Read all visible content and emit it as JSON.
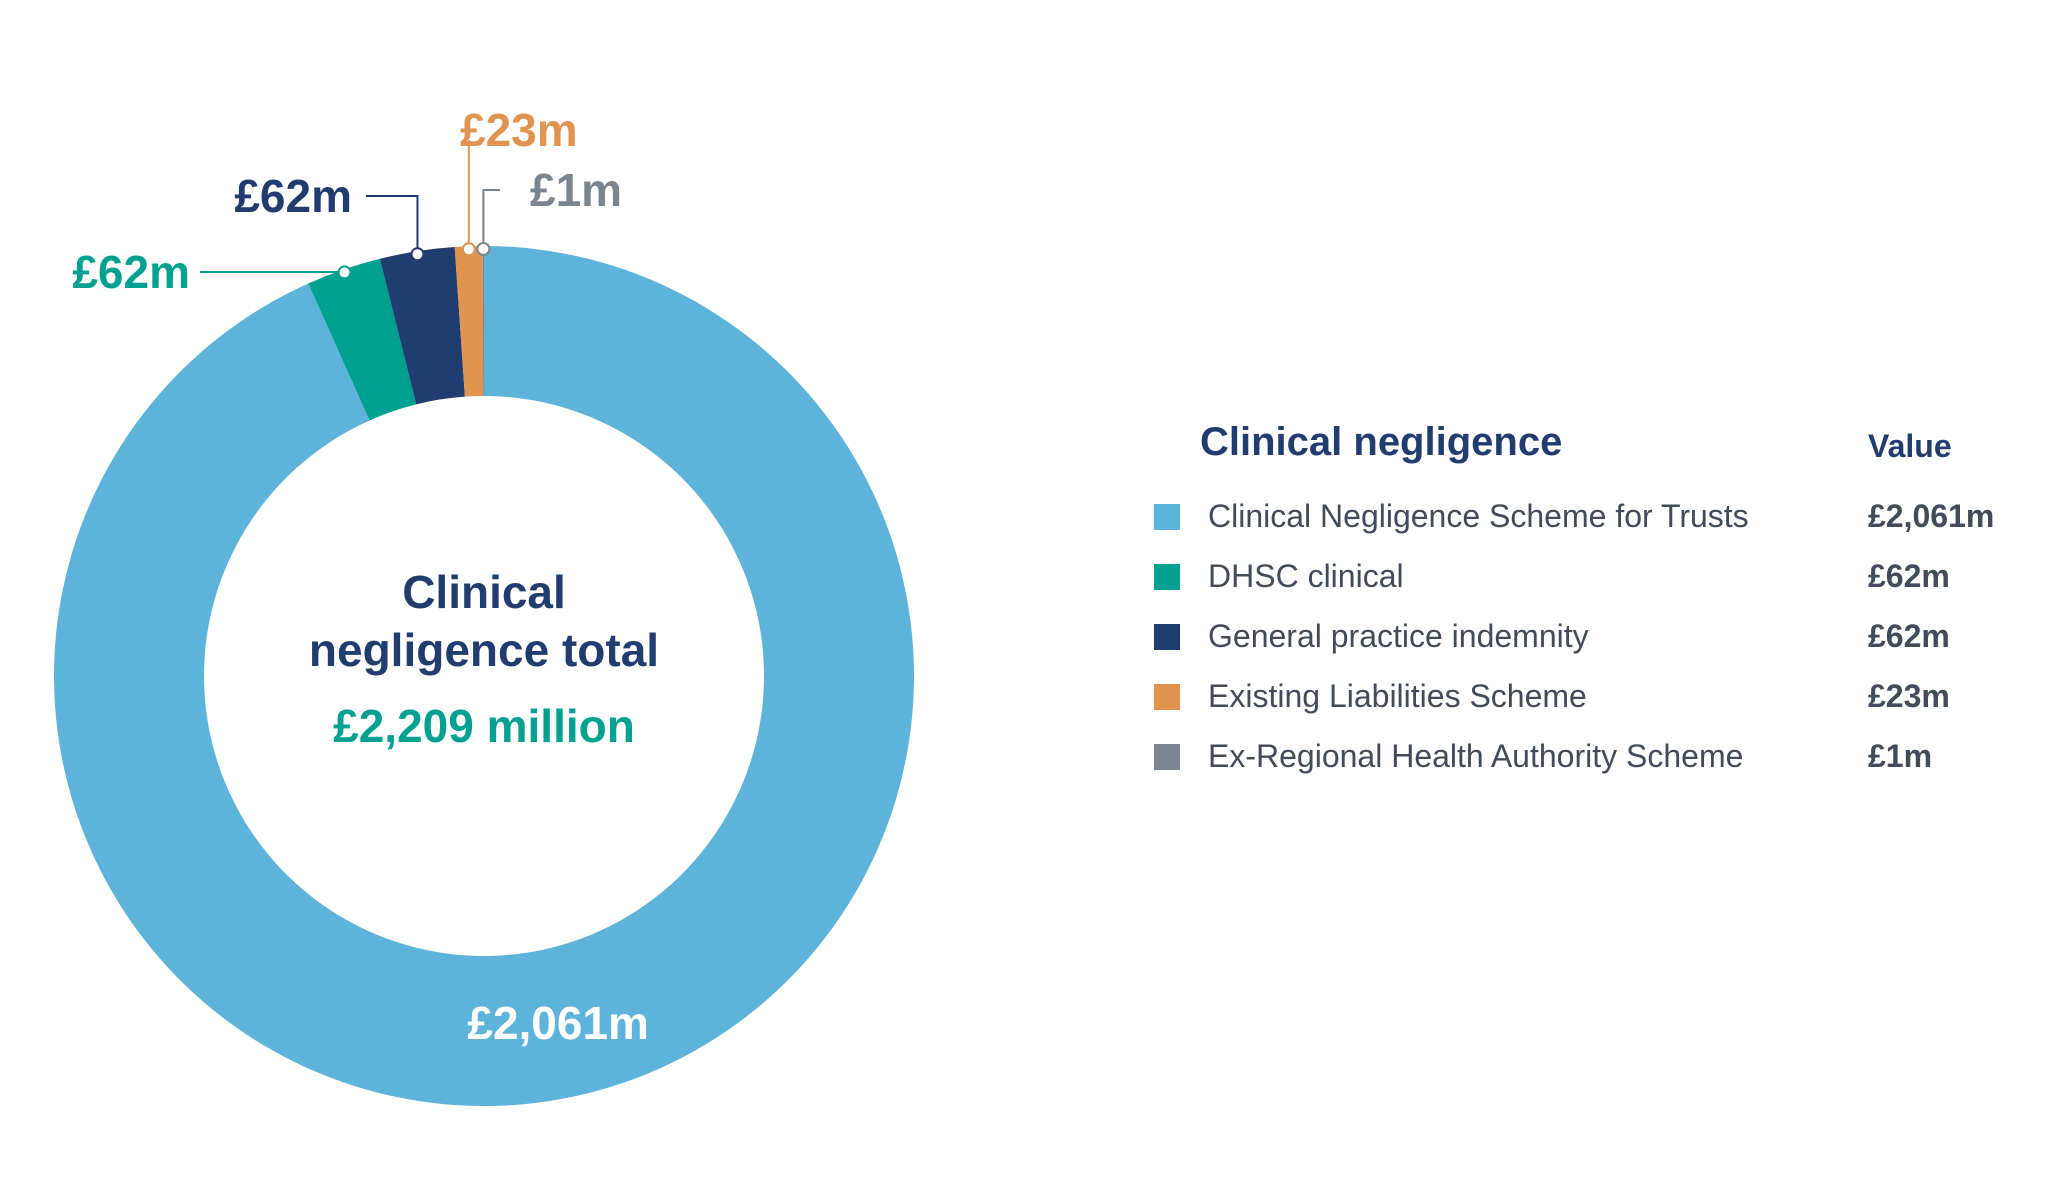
{
  "chart_data": {
    "type": "pie",
    "variant": "donut",
    "center": {
      "title": "Clinical negligence total",
      "title_lines": [
        "Clinical",
        "negligence total"
      ],
      "total": "£2,209 million"
    },
    "unit": "£m",
    "slices": [
      {
        "name": "Clinical Negligence Scheme for Trusts",
        "value": 2061,
        "label": "£2,061m",
        "color": "#5eb3da"
      },
      {
        "name": "DHSC clinical",
        "value": 62,
        "label": "£62m",
        "color": "#00a191"
      },
      {
        "name": "General practice indemnity",
        "value": 62,
        "label": "£62m",
        "color": "#213c6f"
      },
      {
        "name": "Existing Liabilities Scheme",
        "value": 23,
        "label": "£23m",
        "color": "#e0944f"
      },
      {
        "name": "Ex-Regional Health Authority Scheme",
        "value": 1,
        "label": "£1m",
        "color": "#7a8590"
      }
    ],
    "legend": {
      "title": "Clinical negligence",
      "value_header": "Value",
      "placement": "right"
    }
  }
}
